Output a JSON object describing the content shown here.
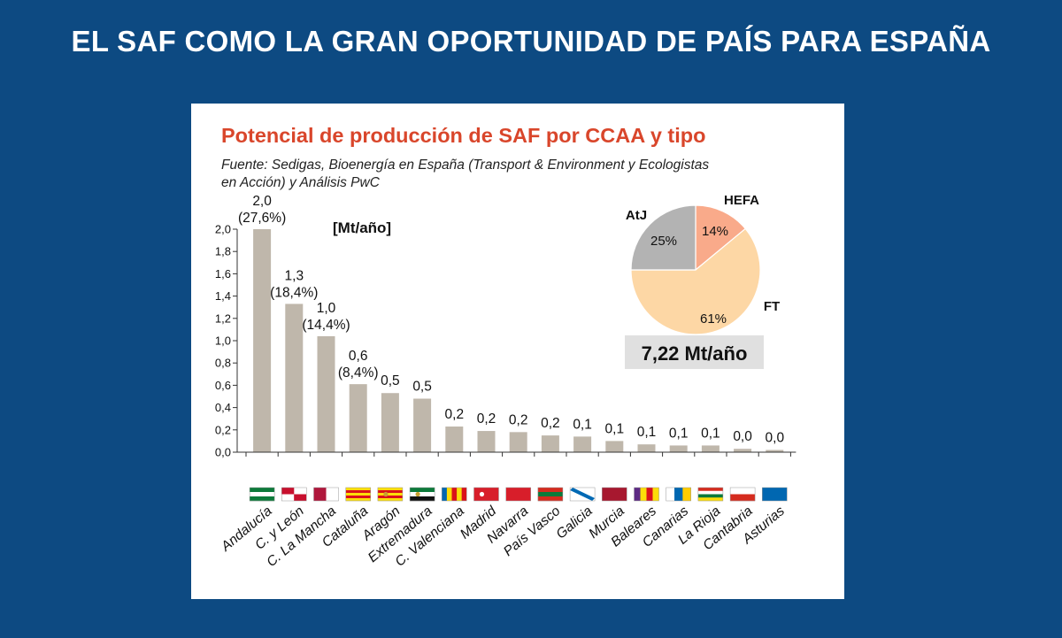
{
  "slide": {
    "title": "EL SAF COMO LA GRAN OPORTUNIDAD DE PAÍS PARA ESPAÑA"
  },
  "colors": {
    "background": "#0d4a82",
    "panel": "#ffffff",
    "bar": "#bfb7ab",
    "title_red": "#d9462b",
    "pie_atj": "#b3b3b3",
    "pie_hefa": "#f9aa8a",
    "pie_ft": "#fdd7a5",
    "total_box": "#e0e0e0"
  },
  "chart_data": [
    {
      "type": "bar",
      "title": "Potencial de producción de SAF por CCAA y tipo",
      "source_line1": "Fuente: Sedigas, Bioenergía en España (Transport & Environment y Ecologistas",
      "source_line2": "en Acción)  y Análisis PwC",
      "unit_label": "[Mt/año]",
      "ylim": [
        0,
        2.0
      ],
      "yticks": [
        "0,0",
        "0,2",
        "0,4",
        "0,6",
        "0,8",
        "1,0",
        "1,2",
        "1,4",
        "1,6",
        "1,8",
        "2,0"
      ],
      "categories": [
        "Andalucía",
        "C. y León",
        "C. La Mancha",
        "Cataluña",
        "Aragón",
        "Extremadura",
        "C. Valenciana",
        "Madrid",
        "Navarra",
        "País Vasco",
        "Galicia",
        "Murcia",
        "Baleares",
        "Canarias",
        "La Rioja",
        "Cantabria",
        "Asturias"
      ],
      "values": [
        2.0,
        1.33,
        1.04,
        0.61,
        0.53,
        0.48,
        0.23,
        0.19,
        0.18,
        0.15,
        0.14,
        0.1,
        0.07,
        0.06,
        0.06,
        0.03,
        0.02
      ],
      "value_labels": [
        "2,0",
        "1,3",
        "1,0",
        "0,6",
        "0,5",
        "0,5",
        "0,2",
        "0,2",
        "0,2",
        "0,2",
        "0,1",
        "0,1",
        "0,1",
        "0,1",
        "0,1",
        "0,0",
        "0,0"
      ],
      "share_labels": [
        "(27,6%)",
        "(18,4%)",
        "(14,4%)",
        "(8,4%)",
        "",
        "",
        "",
        "",
        "",
        "",
        "",
        "",
        "",
        "",
        "",
        "",
        ""
      ],
      "flags": [
        {
          "region": "Andalucía",
          "colors": [
            "#0c7a3a",
            "#ffffff",
            "#0c7a3a"
          ],
          "dir": "h"
        },
        {
          "region": "C. y León",
          "colors": [
            "#c8102e",
            "#ffffff",
            "#c8102e",
            "#ffffff"
          ],
          "dir": "q"
        },
        {
          "region": "C. La Mancha",
          "colors": [
            "#b0173c",
            "#ffffff"
          ],
          "dir": "v"
        },
        {
          "region": "Cataluña",
          "colors": [
            "#fcdd09",
            "#da121a",
            "#fcdd09",
            "#da121a",
            "#fcdd09"
          ],
          "dir": "h"
        },
        {
          "region": "Aragón",
          "colors": [
            "#fcdd09",
            "#da121a",
            "#fcdd09",
            "#da121a",
            "#fcdd09"
          ],
          "dir": "h"
        },
        {
          "region": "Extremadura",
          "colors": [
            "#0c7a3a",
            "#ffffff",
            "#111111"
          ],
          "dir": "h"
        },
        {
          "region": "C. Valenciana",
          "colors": [
            "#0067b1",
            "#fcdd09",
            "#da121a",
            "#fcdd09",
            "#da121a"
          ],
          "dir": "v"
        },
        {
          "region": "Madrid",
          "colors": [
            "#d81e2a"
          ],
          "dir": "h"
        },
        {
          "region": "Navarra",
          "colors": [
            "#d81e2a"
          ],
          "dir": "h"
        },
        {
          "region": "País Vasco",
          "colors": [
            "#d52b1e",
            "#0a7a3b",
            "#d52b1e"
          ],
          "dir": "h"
        },
        {
          "region": "Galicia",
          "colors": [
            "#ffffff",
            "#0069b4",
            "#ffffff"
          ],
          "dir": "d"
        },
        {
          "region": "Murcia",
          "colors": [
            "#a7182f"
          ],
          "dir": "h"
        },
        {
          "region": "Baleares",
          "colors": [
            "#5d2a84",
            "#fcdd09",
            "#da121a",
            "#fcdd09"
          ],
          "dir": "v"
        },
        {
          "region": "Canarias",
          "colors": [
            "#ffffff",
            "#0067b1",
            "#ffcc00"
          ],
          "dir": "v"
        },
        {
          "region": "La Rioja",
          "colors": [
            "#d52b1e",
            "#ffffff",
            "#0a7a3b",
            "#fcdd09"
          ],
          "dir": "h"
        },
        {
          "region": "Cantabria",
          "colors": [
            "#ffffff",
            "#d52b1e"
          ],
          "dir": "h"
        },
        {
          "region": "Asturias",
          "colors": [
            "#0067b1"
          ],
          "dir": "h"
        }
      ],
      "grid": false
    },
    {
      "type": "pie",
      "labels": [
        "HEFA",
        "FT",
        "AtJ"
      ],
      "values": [
        14,
        61,
        25
      ],
      "value_labels": [
        "14%",
        "61%",
        "25%"
      ],
      "total_label": "7,22 Mt/año"
    }
  ]
}
